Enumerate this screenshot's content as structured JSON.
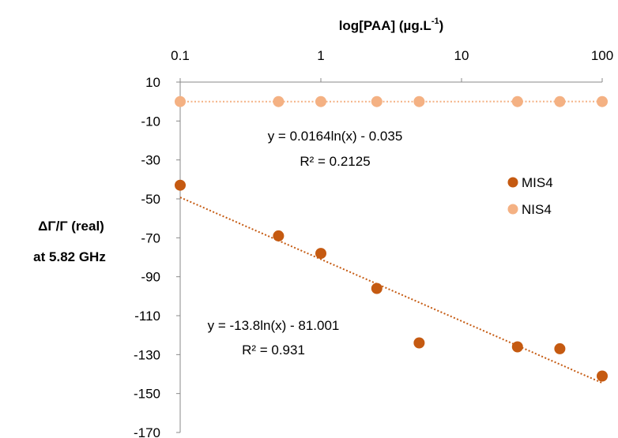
{
  "chart_data": {
    "type": "scatter",
    "xlabel": "log[PAA] (µg.L",
    "xlabel_sup": "-1",
    "xlabel_end": ")",
    "ylabel_line1": "ΔΓ/Γ (real)",
    "ylabel_line2": "at 5.82 GHz",
    "x_scale": "log",
    "x_axis_position": "top",
    "xlim": [
      0.1,
      100
    ],
    "x_ticks": [
      0.1,
      1,
      10,
      100
    ],
    "x_tick_labels": [
      "0.1",
      "1",
      "10",
      "100"
    ],
    "ylim": [
      -170,
      10
    ],
    "y_ticks": [
      10,
      -10,
      -30,
      -50,
      -70,
      -90,
      -110,
      -130,
      -150,
      -170
    ],
    "y_tick_labels": [
      "10",
      "-10",
      "-30",
      "-50",
      "-70",
      "-90",
      "-110",
      "-130",
      "-150",
      "-170"
    ],
    "grid": false,
    "legend_position": "right",
    "series": [
      {
        "name": "MIS4",
        "color": "#C55A11",
        "x": [
          0.1,
          0.5,
          1,
          2.5,
          5,
          25,
          50,
          100
        ],
        "y": [
          -43,
          -69,
          -78,
          -96,
          -124,
          -126,
          -127,
          -141
        ],
        "trendline": {
          "type": "log",
          "a": -13.8,
          "b": -81.001
        },
        "equation": "y = -13.8ln(x) - 81.001",
        "r2": "R² = 0.931"
      },
      {
        "name": "NIS4",
        "color": "#F4B183",
        "x": [
          0.1,
          0.5,
          1,
          2.5,
          5,
          25,
          50,
          100
        ],
        "y": [
          0,
          0,
          0,
          0,
          0,
          0,
          0,
          0
        ],
        "trendline": {
          "type": "log",
          "a": 0.0164,
          "b": -0.035
        },
        "equation": "y = 0.0164ln(x) - 0.035",
        "r2": "R² = 0.2125"
      }
    ]
  }
}
